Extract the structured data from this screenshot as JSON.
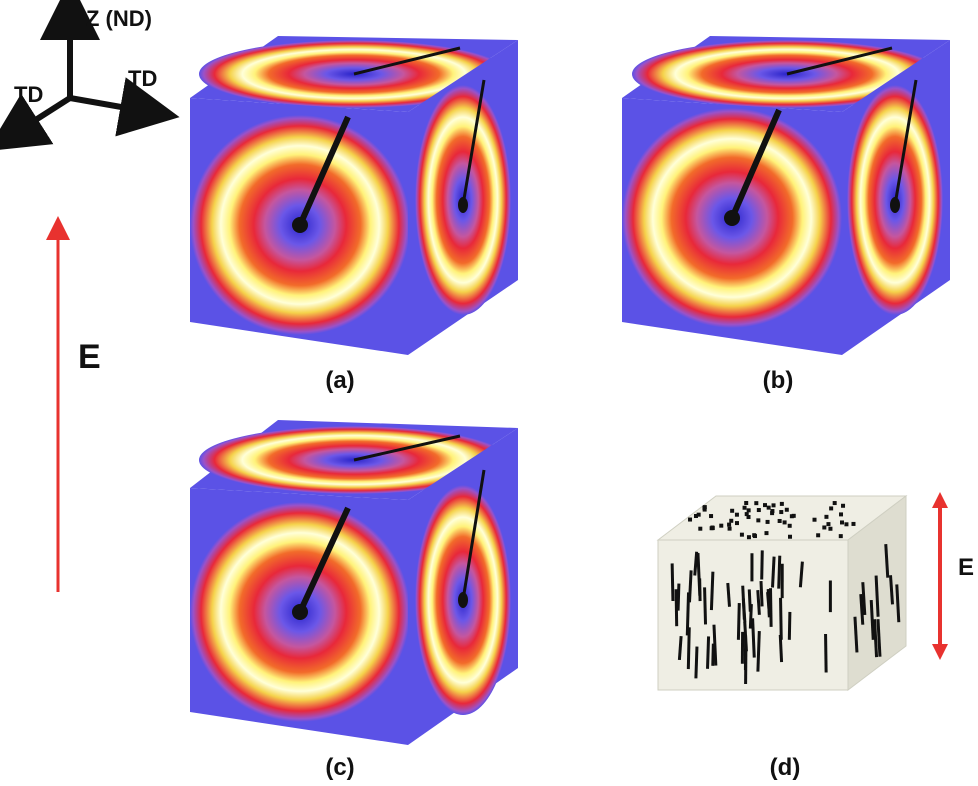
{
  "axes": {
    "z_label": "Z (ND)",
    "left_label": "TD",
    "right_label": "TD"
  },
  "field": {
    "label": "E",
    "small_label": "E",
    "color": "#e8322f"
  },
  "panels": [
    {
      "id": "a",
      "label": "(a)"
    },
    {
      "id": "b",
      "label": "(b)"
    },
    {
      "id": "c",
      "label": "(c)"
    },
    {
      "id": "d",
      "label": "(d)"
    }
  ],
  "colors": {
    "background_face": "#5b52e6",
    "ring_red": "#e8283a",
    "ring_yellow": "#fff27a",
    "ring_white": "#ffffd8",
    "beamstop": "#111111",
    "schematic_face": "#efeee4",
    "fiber": "#111111"
  }
}
